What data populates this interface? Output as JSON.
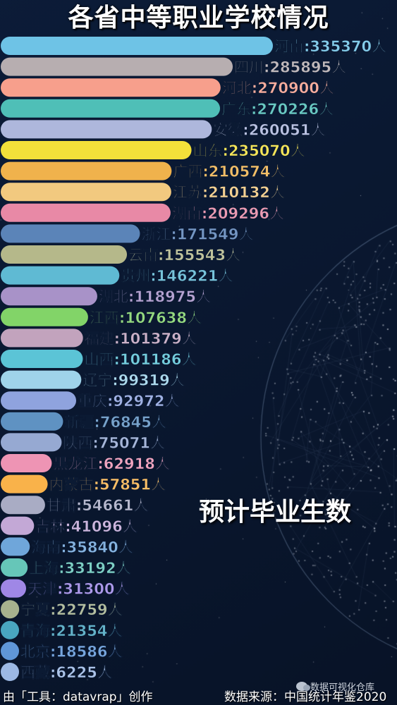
{
  "chart_data": {
    "type": "bar",
    "orientation": "horizontal",
    "title": "各省中等职业学校情况",
    "measure_label": "预计毕业生数",
    "unit": "人",
    "categories": [
      "河南",
      "四川",
      "河北",
      "广东",
      "安徽",
      "山东",
      "广西",
      "江苏",
      "湖南",
      "浙江",
      "云南",
      "贵州",
      "湖北",
      "江西",
      "福建",
      "山西",
      "辽宁",
      "重庆",
      "新疆",
      "陕西",
      "黑龙江",
      "内蒙古",
      "甘肃",
      "吉林",
      "海南",
      "上海",
      "天津",
      "宁夏",
      "青海",
      "北京",
      "西藏"
    ],
    "values": [
      335370,
      285895,
      270900,
      270226,
      260051,
      235070,
      210574,
      210132,
      209296,
      171549,
      155543,
      146221,
      118975,
      107638,
      101379,
      101186,
      99319,
      92972,
      76845,
      75071,
      62918,
      57851,
      54661,
      41096,
      35840,
      33192,
      31300,
      22759,
      21354,
      18586,
      6225
    ],
    "colors": [
      "#6ec3e6",
      "#b7aeb0",
      "#f79f8c",
      "#4fbfb7",
      "#aeb7dc",
      "#f3e03a",
      "#f0b24c",
      "#f2c97f",
      "#e889a6",
      "#5b84b8",
      "#b5b88a",
      "#5fbad3",
      "#a892c8",
      "#82d468",
      "#c2a3bd",
      "#5bc4d6",
      "#9fd3ea",
      "#8fa3de",
      "#5f92c2",
      "#96a9d2",
      "#ee94b4",
      "#f9b24a",
      "#a9acc4",
      "#c3a8d6",
      "#6fa6da",
      "#66c6b8",
      "#9f87e6",
      "#a7b28e",
      "#49a6c0",
      "#5f96d8",
      "#9cb8e4"
    ],
    "xlim": [
      0,
      335370
    ]
  },
  "footer": {
    "left": "由「工具：datavrap」创作",
    "right": "数据来源：中国统计年鉴2020"
  },
  "watermark": "数据可视化仓库"
}
